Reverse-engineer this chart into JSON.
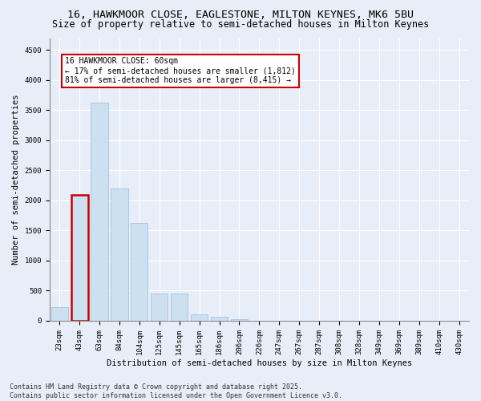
{
  "title_line1": "16, HAWKMOOR CLOSE, EAGLESTONE, MILTON KEYNES, MK6 5BU",
  "title_line2": "Size of property relative to semi-detached houses in Milton Keynes",
  "xlabel": "Distribution of semi-detached houses by size in Milton Keynes",
  "ylabel": "Number of semi-detached properties",
  "categories": [
    "23sqm",
    "43sqm",
    "63sqm",
    "84sqm",
    "104sqm",
    "125sqm",
    "145sqm",
    "165sqm",
    "186sqm",
    "206sqm",
    "226sqm",
    "247sqm",
    "267sqm",
    "287sqm",
    "308sqm",
    "328sqm",
    "349sqm",
    "369sqm",
    "389sqm",
    "410sqm",
    "430sqm"
  ],
  "values": [
    230,
    2090,
    3620,
    2200,
    1620,
    450,
    450,
    100,
    60,
    20,
    0,
    0,
    0,
    0,
    0,
    0,
    0,
    0,
    0,
    0,
    0
  ],
  "bar_color": "#cce0f0",
  "bar_edge_color": "#aac8e8",
  "highlight_bar_index": 1,
  "highlight_bar_edge_color": "#cc0000",
  "highlight_bar_linewidth": 1.8,
  "annotation_box_text": "16 HAWKMOOR CLOSE: 60sqm\n← 17% of semi-detached houses are smaller (1,812)\n81% of semi-detached houses are larger (8,415) →",
  "ylim": [
    0,
    4700
  ],
  "yticks": [
    0,
    500,
    1000,
    1500,
    2000,
    2500,
    3000,
    3500,
    4000,
    4500
  ],
  "background_color": "#e8eef8",
  "footer_text": "Contains HM Land Registry data © Crown copyright and database right 2025.\nContains public sector information licensed under the Open Government Licence v3.0.",
  "title_fontsize": 9.5,
  "subtitle_fontsize": 8.5,
  "axis_label_fontsize": 7.5,
  "tick_fontsize": 6.5,
  "annotation_fontsize": 7,
  "footer_fontsize": 6
}
